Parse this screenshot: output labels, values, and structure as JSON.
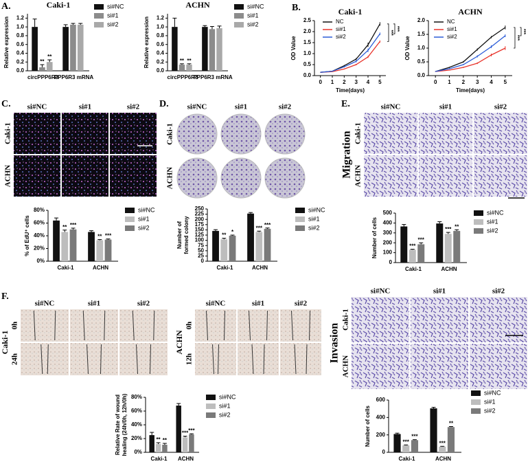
{
  "panel_labels": [
    "A.",
    "B.",
    "C.",
    "D.",
    "E.",
    "F."
  ],
  "chart_data": [
    {
      "type": "bar",
      "title": "Caki-1",
      "ylabel": [
        "Relative expression"
      ],
      "categories": [
        "circPPP6R3",
        "PPP6R3 mRNA"
      ],
      "ylim": [
        0,
        1.3
      ],
      "yticks": [
        {
          "value": 0,
          "label": "0.0"
        },
        0.2,
        0.4,
        0.6,
        0.8,
        {
          "value": 1,
          "label": "1.0"
        },
        1.2
      ],
      "legend": "right",
      "series": [
        {
          "name": "si#NC",
          "color": "#111111",
          "values": [
            1.0,
            1.0
          ],
          "errors": [
            0.18,
            0.05
          ]
        },
        {
          "name": "si#1",
          "color": "#8c8c8c",
          "values": [
            0.08,
            1.05
          ],
          "errors": [
            0.06,
            0.03
          ],
          "significance": [
            "**",
            null
          ]
        },
        {
          "name": "si#2",
          "color": "#a9a9a9",
          "values": [
            0.2,
            1.05
          ],
          "errors": [
            0.05,
            0.03
          ],
          "significance": [
            "**",
            null
          ]
        }
      ]
    },
    {
      "type": "bar",
      "title": "ACHN",
      "ylabel": [
        "Relative expression"
      ],
      "categories": [
        "circPPP6R3",
        "PPP6R3 mRNA"
      ],
      "ylim": [
        0,
        1.3
      ],
      "yticks": [
        {
          "value": 0,
          "label": "0.0"
        },
        0.2,
        0.4,
        0.6,
        0.8,
        {
          "value": 1,
          "label": "1.0"
        },
        1.2
      ],
      "legend": "right",
      "series": [
        {
          "name": "si#NC",
          "color": "#111111",
          "values": [
            1.0,
            1.0
          ],
          "errors": [
            0.2,
            0.03
          ]
        },
        {
          "name": "si#1",
          "color": "#8c8c8c",
          "values": [
            0.14,
            0.95
          ],
          "errors": [
            0.02,
            0.06
          ],
          "significance": [
            "**",
            null
          ]
        },
        {
          "name": "si#2",
          "color": "#a9a9a9",
          "values": [
            0.14,
            0.97
          ],
          "errors": [
            0.02,
            0.05
          ],
          "significance": [
            "**",
            null
          ]
        }
      ]
    },
    {
      "type": "line",
      "title": "Caki-1",
      "ylabel": [
        "OD Value"
      ],
      "xlabel": "Time(days)",
      "x": [
        0,
        1,
        2,
        3,
        4,
        5
      ],
      "xlim": [
        -0.5,
        5.5
      ],
      "xticks": [
        0,
        1,
        2,
        3,
        4,
        5
      ],
      "ylim": [
        0,
        2.5
      ],
      "yticks": [
        {
          "value": 0,
          "label": "0.0"
        },
        0.5,
        {
          "value": 1,
          "label": "1.0"
        },
        1.5,
        {
          "value": 2,
          "label": "2.0"
        },
        2.5
      ],
      "legend": "upper left",
      "annotations": [
        "***",
        "***"
      ],
      "series": [
        {
          "name": "NC",
          "color": "#111111",
          "values": [
            0.15,
            0.2,
            0.45,
            0.75,
            1.4,
            2.35
          ],
          "errors": [
            0.01,
            0.02,
            0.03,
            0.05,
            0.1,
            0.08
          ]
        },
        {
          "name": "si#1",
          "color": "#e8332a",
          "values": [
            0.15,
            0.18,
            0.3,
            0.5,
            0.85,
            1.55
          ],
          "errors": [
            0.01,
            0.01,
            0.02,
            0.03,
            0.05,
            0.05
          ]
        },
        {
          "name": "si#2",
          "color": "#2a5bd7",
          "values": [
            0.15,
            0.2,
            0.4,
            0.65,
            1.15,
            1.9
          ],
          "errors": [
            0.01,
            0.01,
            0.03,
            0.05,
            0.08,
            0.06
          ]
        }
      ]
    },
    {
      "type": "line",
      "title": "ACHN",
      "ylabel": [
        "OD Value"
      ],
      "xlabel": "Time(days)",
      "x": [
        0,
        1,
        2,
        3,
        4,
        5
      ],
      "xlim": [
        -0.5,
        5.5
      ],
      "xticks": [
        0,
        1,
        2,
        3,
        4,
        5
      ],
      "ylim": [
        0,
        2
      ],
      "yticks": [
        {
          "value": 0,
          "label": "0.0"
        },
        0.5,
        {
          "value": 1,
          "label": "1.0"
        },
        1.5,
        {
          "value": 2,
          "label": "2.0"
        }
      ],
      "legend": "upper left",
      "annotations": [
        "***",
        "***"
      ],
      "series": [
        {
          "name": "NC",
          "color": "#111111",
          "values": [
            0.15,
            0.3,
            0.5,
            0.95,
            1.4,
            1.75
          ],
          "errors": [
            0.01,
            0.02,
            0.03,
            0.04,
            0.04,
            0.07
          ]
        },
        {
          "name": "si#1",
          "color": "#e8332a",
          "values": [
            0.15,
            0.2,
            0.3,
            0.45,
            0.75,
            1.0
          ],
          "errors": [
            0.01,
            0.01,
            0.02,
            0.03,
            0.05,
            0.07
          ]
        },
        {
          "name": "si#2",
          "color": "#2a5bd7",
          "values": [
            0.15,
            0.25,
            0.4,
            0.7,
            1.05,
            1.45
          ],
          "errors": [
            0.01,
            0.02,
            0.02,
            0.04,
            0.05,
            0.05
          ]
        }
      ]
    },
    {
      "type": "bar",
      "ylabel": [
        "% of EdU⁺ cells"
      ],
      "categories": [
        "Caki-1",
        "ACHN"
      ],
      "ylim": [
        0,
        80
      ],
      "yticks": [
        {
          "value": 0,
          "label": "0%"
        },
        {
          "value": 20,
          "label": "20%"
        },
        {
          "value": 40,
          "label": "40%"
        },
        {
          "value": 60,
          "label": "60%"
        },
        {
          "value": 80,
          "label": "80%"
        }
      ],
      "legend": "right",
      "series": [
        {
          "name": "si#NC",
          "color": "#111111",
          "values": [
            64,
            46
          ],
          "errors": [
            4,
            2
          ]
        },
        {
          "name": "si#1",
          "color": "#bdbdbd",
          "values": [
            46,
            33
          ],
          "errors": [
            3,
            1
          ],
          "significance": [
            "**",
            "**"
          ]
        },
        {
          "name": "si#2",
          "color": "#7a7a7a",
          "values": [
            50,
            34
          ],
          "errors": [
            2,
            1
          ],
          "significance": [
            "***",
            "***"
          ]
        }
      ]
    },
    {
      "type": "bar",
      "ylabel": [
        "Number of",
        "formed colony"
      ],
      "categories": [
        "Caki-1",
        "ACHN"
      ],
      "ylim": [
        0,
        250
      ],
      "yticks": [
        0,
        25,
        50,
        75,
        100,
        125,
        150,
        175,
        200,
        225,
        250
      ],
      "legend": "right",
      "series": [
        {
          "name": "si#NC",
          "color": "#111111",
          "values": [
            145,
            228
          ],
          "errors": [
            6,
            5
          ]
        },
        {
          "name": "si#1",
          "color": "#bdbdbd",
          "values": [
            105,
            140
          ],
          "errors": [
            5,
            4
          ],
          "significance": [
            "**",
            "***"
          ]
        },
        {
          "name": "si#2",
          "color": "#7a7a7a",
          "values": [
            122,
            155
          ],
          "errors": [
            3,
            4
          ],
          "significance": [
            "*",
            "***"
          ]
        }
      ]
    },
    {
      "type": "bar",
      "ylabel": [
        "Number of cells"
      ],
      "categories": [
        "Caki-1",
        "ACHN"
      ],
      "ylim": [
        0,
        500
      ],
      "yticks": [
        0,
        100,
        200,
        300,
        400,
        500
      ],
      "legend": "right",
      "series": [
        {
          "name": "si#NC",
          "color": "#111111",
          "values": [
            365,
            395
          ],
          "errors": [
            20,
            18
          ]
        },
        {
          "name": "si#1",
          "color": "#bdbdbd",
          "values": [
            130,
            290
          ],
          "errors": [
            5,
            15
          ],
          "significance": [
            "***",
            "***"
          ]
        },
        {
          "name": "si#2",
          "color": "#7a7a7a",
          "values": [
            185,
            320
          ],
          "errors": [
            15,
            12
          ],
          "significance": [
            "***",
            "**"
          ]
        }
      ]
    },
    {
      "type": "bar",
      "ylabel": [
        "Relative Rate of wound",
        "healing (24h/0h, 12h/0h)"
      ],
      "categories": [
        "Caki-1",
        "ACHN"
      ],
      "ylim": [
        0,
        80
      ],
      "yticks": [
        {
          "value": 0,
          "label": "0%"
        },
        {
          "value": 20,
          "label": "20%"
        },
        {
          "value": 40,
          "label": "40%"
        },
        {
          "value": 60,
          "label": "60%"
        },
        {
          "value": 80,
          "label": "80%"
        }
      ],
      "legend": "right",
      "series": [
        {
          "name": "si#NC",
          "color": "#111111",
          "values": [
            25,
            68
          ],
          "errors": [
            4,
            3
          ]
        },
        {
          "name": "si#1",
          "color": "#bdbdbd",
          "values": [
            12,
            22
          ],
          "errors": [
            2,
            1.5
          ],
          "significance": [
            "**",
            "***"
          ]
        },
        {
          "name": "si#2",
          "color": "#7a7a7a",
          "values": [
            11,
            26
          ],
          "errors": [
            2,
            1
          ],
          "significance": [
            "**",
            "***"
          ]
        }
      ]
    },
    {
      "type": "bar",
      "ylabel": [
        "Number of cells"
      ],
      "categories": [
        "Caki-1",
        "ACHN"
      ],
      "ylim": [
        0,
        600
      ],
      "yticks": [
        0,
        200,
        400,
        600
      ],
      "legend": "right",
      "series": [
        {
          "name": "si#NC",
          "color": "#111111",
          "values": [
            210,
            505
          ],
          "errors": [
            10,
            12
          ]
        },
        {
          "name": "si#1",
          "color": "#bdbdbd",
          "values": [
            80,
            65
          ],
          "errors": [
            5,
            4
          ],
          "significance": [
            "***",
            "***"
          ]
        },
        {
          "name": "si#2",
          "color": "#7a7a7a",
          "values": [
            140,
            290
          ],
          "errors": [
            5,
            6
          ],
          "significance": [
            "***",
            "**"
          ]
        }
      ]
    }
  ],
  "image_panels": {
    "C": {
      "columns": [
        "si#NC",
        "si#1",
        "si#2"
      ],
      "rows": [
        "Caki-1",
        "ACHN"
      ]
    },
    "D": {
      "columns": [
        "si#NC",
        "si#1",
        "si#2"
      ],
      "rows": [
        "Caki-1",
        "ACHN"
      ]
    },
    "E": {
      "side": "Migration",
      "columns": [
        "si#NC",
        "si#1",
        "si#2"
      ],
      "rows": [
        "Caki-1",
        "ACHN"
      ]
    },
    "F_left": {
      "side": "Caki-1",
      "columns": [
        "si#NC",
        "si#1",
        "si#2"
      ],
      "rows": [
        "0h",
        "24h"
      ]
    },
    "F_right": {
      "side": "ACHN",
      "columns": [
        "si#NC",
        "si#1",
        "si#2"
      ],
      "rows": [
        "0h",
        "12h"
      ]
    },
    "invasion": {
      "side": "Invasion",
      "columns": [
        "si#NC",
        "si#1",
        "si#2"
      ],
      "rows": [
        "Caki-1",
        "ACHN"
      ]
    }
  }
}
